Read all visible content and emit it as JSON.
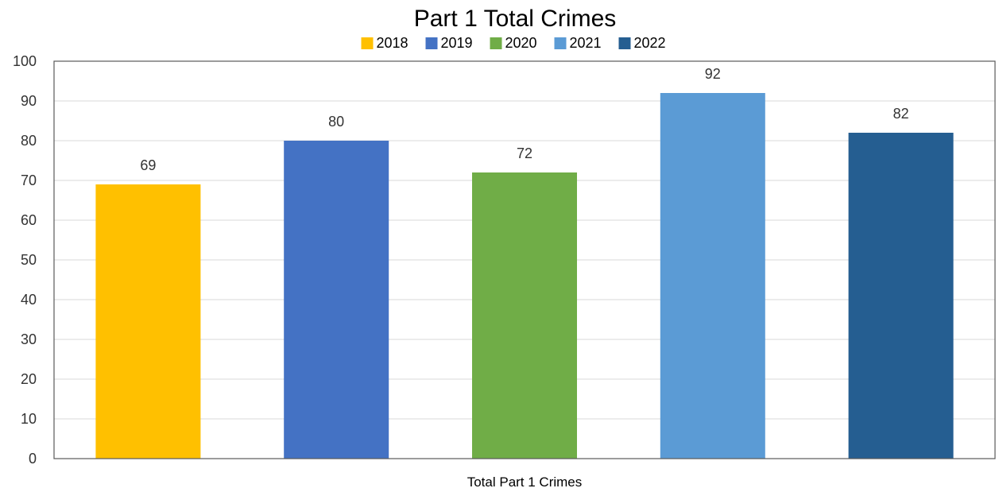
{
  "chart_data": {
    "type": "bar",
    "title": "Part 1 Total Crimes",
    "xlabel": "Total Part 1 Crimes",
    "ylabel": "",
    "ylim": [
      0,
      100
    ],
    "yticks": [
      0,
      10,
      20,
      30,
      40,
      50,
      60,
      70,
      80,
      90,
      100
    ],
    "categories": [
      "Total Part 1 Crimes"
    ],
    "series": [
      {
        "name": "2018",
        "values": [
          69
        ],
        "color": "#ffc000"
      },
      {
        "name": "2019",
        "values": [
          80
        ],
        "color": "#4472c4"
      },
      {
        "name": "2020",
        "values": [
          72
        ],
        "color": "#70ad47"
      },
      {
        "name": "2021",
        "values": [
          92
        ],
        "color": "#5b9bd5"
      },
      {
        "name": "2022",
        "values": [
          82
        ],
        "color": "#255e91"
      }
    ],
    "legend": "top",
    "grid": true,
    "data_labels": true
  }
}
